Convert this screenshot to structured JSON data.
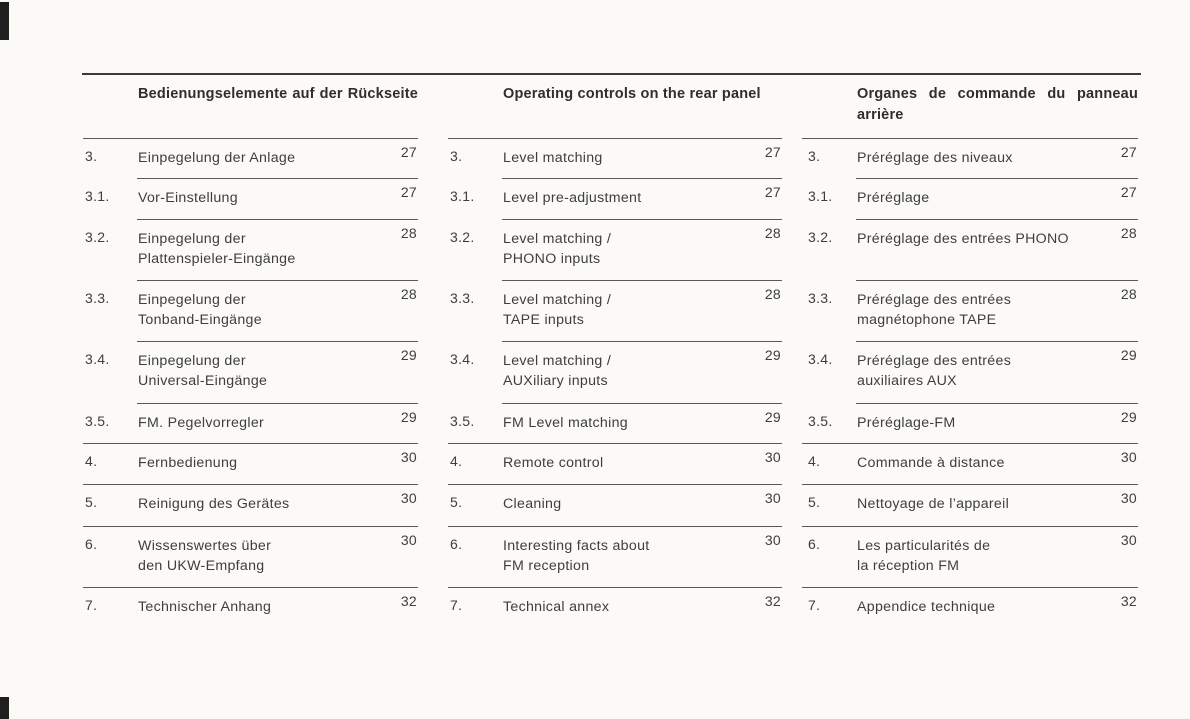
{
  "page": {
    "background": "#fbfaf7",
    "text_color": "#3e3e3e",
    "heading_color": "#2e2e2e",
    "rule_color": "#585858",
    "top_rule_color": "#3a3a3a"
  },
  "columns": [
    {
      "lang": "de",
      "header_lines": [
        "Bedienungselemente auf der Rückseite"
      ],
      "header_justify": true,
      "items": [
        {
          "num": "3.",
          "lines": [
            "Einpegelung der Anlage"
          ],
          "page": "27",
          "major": true
        },
        {
          "num": "3.1.",
          "lines": [
            "Vor-Einstellung"
          ],
          "page": "27",
          "major": false
        },
        {
          "num": "3.2.",
          "lines": [
            "Einpegelung der",
            "Plattenspieler-Eingänge"
          ],
          "page": "28",
          "major": false
        },
        {
          "num": "3.3.",
          "lines": [
            "Einpegelung der",
            "Tonband-Eingänge"
          ],
          "page": "28",
          "major": false
        },
        {
          "num": "3.4.",
          "lines": [
            "Einpegelung der",
            "Universal-Eingänge"
          ],
          "page": "29",
          "major": false
        },
        {
          "num": "3.5.",
          "lines": [
            "FM. Pegelvorregler"
          ],
          "page": "29",
          "major": false
        },
        {
          "num": "4.",
          "lines": [
            "Fernbedienung"
          ],
          "page": "30",
          "major": true
        },
        {
          "num": "5.",
          "lines": [
            "Reinigung des Gerätes"
          ],
          "page": "30",
          "major": true
        },
        {
          "num": "6.",
          "lines": [
            "Wissenswertes über",
            "den UKW-Empfang"
          ],
          "page": "30",
          "major": true
        },
        {
          "num": "7.",
          "lines": [
            "Technischer Anhang"
          ],
          "page": "32",
          "major": true
        }
      ]
    },
    {
      "lang": "en",
      "header_lines": [
        "Operating controls on the rear panel"
      ],
      "header_justify": false,
      "items": [
        {
          "num": "3.",
          "lines": [
            "Level matching"
          ],
          "page": "27",
          "major": true
        },
        {
          "num": "3.1.",
          "lines": [
            "Level pre-adjustment"
          ],
          "page": "27",
          "major": false
        },
        {
          "num": "3.2.",
          "lines": [
            "Level matching /",
            "PHONO inputs"
          ],
          "page": "28",
          "major": false
        },
        {
          "num": "3.3.",
          "lines": [
            "Level matching /",
            "TAPE inputs"
          ],
          "page": "28",
          "major": false
        },
        {
          "num": "3.4.",
          "lines": [
            "Level matching /",
            "AUXiliary inputs"
          ],
          "page": "29",
          "major": false
        },
        {
          "num": "3.5.",
          "lines": [
            "FM Level matching"
          ],
          "page": "29",
          "major": false
        },
        {
          "num": "4.",
          "lines": [
            "Remote control"
          ],
          "page": "30",
          "major": true
        },
        {
          "num": "5.",
          "lines": [
            "Cleaning"
          ],
          "page": "30",
          "major": true
        },
        {
          "num": "6.",
          "lines": [
            "Interesting facts about",
            "FM reception"
          ],
          "page": "30",
          "major": true
        },
        {
          "num": "7.",
          "lines": [
            "Technical annex"
          ],
          "page": "32",
          "major": true
        }
      ]
    },
    {
      "lang": "fr",
      "header_lines": [
        "Organes de commande du panneau",
        "arrière"
      ],
      "header_justify": true,
      "items": [
        {
          "num": "3.",
          "lines": [
            "Préréglage des niveaux"
          ],
          "page": "27",
          "major": true
        },
        {
          "num": "3.1.",
          "lines": [
            "Préréglage"
          ],
          "page": "27",
          "major": false
        },
        {
          "num": "3.2.",
          "lines": [
            "Préréglage des entrées PHONO"
          ],
          "page": "28",
          "major": false
        },
        {
          "num": "3.3.",
          "lines": [
            "Préréglage des entrées",
            "magnétophone TAPE"
          ],
          "page": "28",
          "major": false
        },
        {
          "num": "3.4.",
          "lines": [
            "Préréglage des entrées",
            "auxiliaires AUX"
          ],
          "page": "29",
          "major": false
        },
        {
          "num": "3.5.",
          "lines": [
            "Préréglage-FM"
          ],
          "page": "29",
          "major": false
        },
        {
          "num": "4.",
          "lines": [
            "Commande à distance"
          ],
          "page": "30",
          "major": true
        },
        {
          "num": "5.",
          "lines": [
            "Nettoyage de l’appareil"
          ],
          "page": "30",
          "major": true
        },
        {
          "num": "6.",
          "lines": [
            "Les particularités de",
            "la réception FM"
          ],
          "page": "30",
          "major": true
        },
        {
          "num": "7.",
          "lines": [
            "Appendice technique"
          ],
          "page": "32",
          "major": true
        }
      ]
    }
  ]
}
